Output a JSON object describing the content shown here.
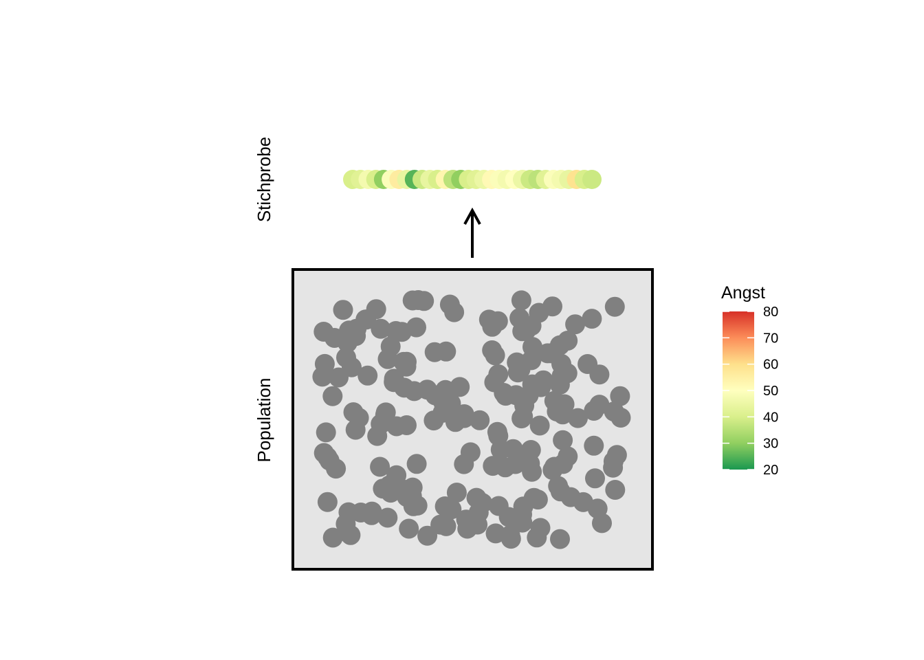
{
  "labels": {
    "sample": "Stichprobe",
    "population": "Population"
  },
  "legend": {
    "title": "Angst",
    "ticks": [
      "80",
      "70",
      "60",
      "50",
      "40",
      "30",
      "20"
    ],
    "tick_values": [
      80,
      70,
      60,
      50,
      40,
      30,
      20
    ],
    "range": [
      20,
      80
    ],
    "colors": [
      "#1a9850",
      "#91cf60",
      "#d9ef8b",
      "#ffffbf",
      "#fee08b",
      "#fc8d59",
      "#d73027"
    ]
  },
  "colors": {
    "population_dot": "#808080",
    "population_panel": "#e5e5e5",
    "panel_border": "#000000",
    "arrow": "#000000"
  },
  "chart_data": {
    "type": "scatter",
    "sample_angst": [
      40,
      42,
      47,
      40,
      30,
      49,
      56,
      44,
      25,
      38,
      44,
      40,
      53,
      36,
      30,
      40,
      42,
      45,
      52,
      49,
      47,
      50,
      45,
      38,
      36,
      42,
      49,
      47,
      44,
      59,
      40,
      38
    ]
  }
}
